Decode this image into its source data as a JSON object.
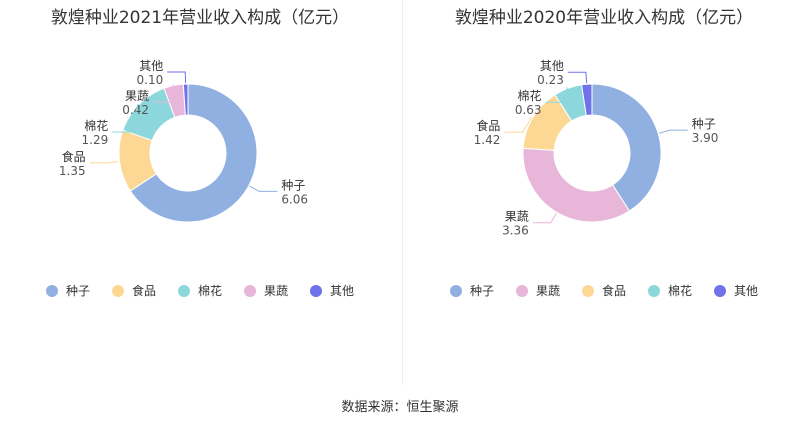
{
  "source": "数据来源：恒生聚源",
  "colors": {
    "种子": "#8fb0e0",
    "食品": "#fdd895",
    "棉花": "#8bd7dc",
    "果蔬": "#e8b6d8",
    "其他": "#6f72e8"
  },
  "chart_data": [
    {
      "type": "pie",
      "title": "敦煌种业2021年营业收入构成（亿元）",
      "slices": [
        {
          "name": "种子",
          "value": 6.06,
          "label": "6.06"
        },
        {
          "name": "食品",
          "value": 1.35,
          "label": "1.35"
        },
        {
          "name": "棉花",
          "value": 1.29,
          "label": "1.29"
        },
        {
          "name": "果蔬",
          "value": 0.42,
          "label": "0.42"
        },
        {
          "name": "其他",
          "value": 0.1,
          "label": "0.10"
        }
      ],
      "legend": [
        "种子",
        "食品",
        "棉花",
        "果蔬",
        "其他"
      ],
      "legend_position": "bottom"
    },
    {
      "type": "pie",
      "title": "敦煌种业2020年营业收入构成（亿元）",
      "slices": [
        {
          "name": "种子",
          "value": 3.9,
          "label": "3.90"
        },
        {
          "name": "果蔬",
          "value": 3.36,
          "label": "3.36"
        },
        {
          "name": "食品",
          "value": 1.42,
          "label": "1.42"
        },
        {
          "name": "棉花",
          "value": 0.63,
          "label": "0.63"
        },
        {
          "name": "其他",
          "value": 0.23,
          "label": "0.23"
        }
      ],
      "legend": [
        "种子",
        "果蔬",
        "食品",
        "棉花",
        "其他"
      ],
      "legend_position": "bottom"
    }
  ]
}
